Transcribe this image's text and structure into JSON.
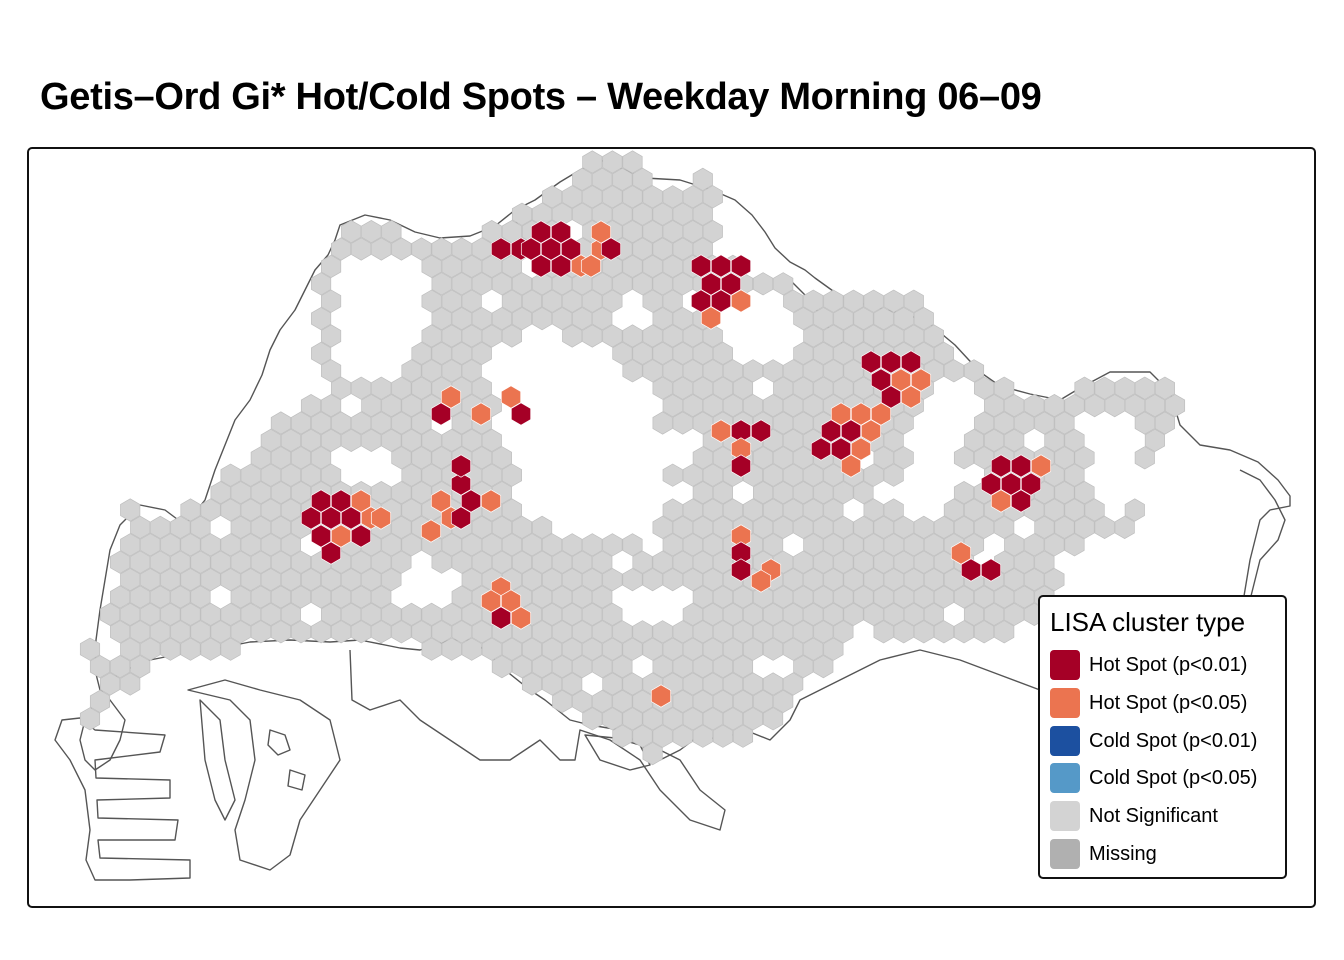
{
  "title": "Getis–Ord Gi* Hot/Cold Spots – Weekday Morning 06–09",
  "legend": {
    "title": "LISA cluster type",
    "items": [
      {
        "label": "Hot Spot (p<0.01)",
        "color": "#A50026"
      },
      {
        "label": "Hot Spot (p<0.05)",
        "color": "#EB7450"
      },
      {
        "label": "Cold Spot (p<0.01)",
        "color": "#1C50A0"
      },
      {
        "label": "Cold Spot (p<0.05)",
        "color": "#5599C8"
      },
      {
        "label": "Not Significant",
        "color": "#D3D3D3"
      },
      {
        "label": "Missing",
        "color": "#B0B0B0"
      }
    ]
  },
  "colors": {
    "hot_01": "#A50026",
    "hot_05": "#EB7450",
    "not_significant": "#D3D3D3",
    "hex_stroke": "#BEBEBE",
    "coastline": "#555555"
  }
}
